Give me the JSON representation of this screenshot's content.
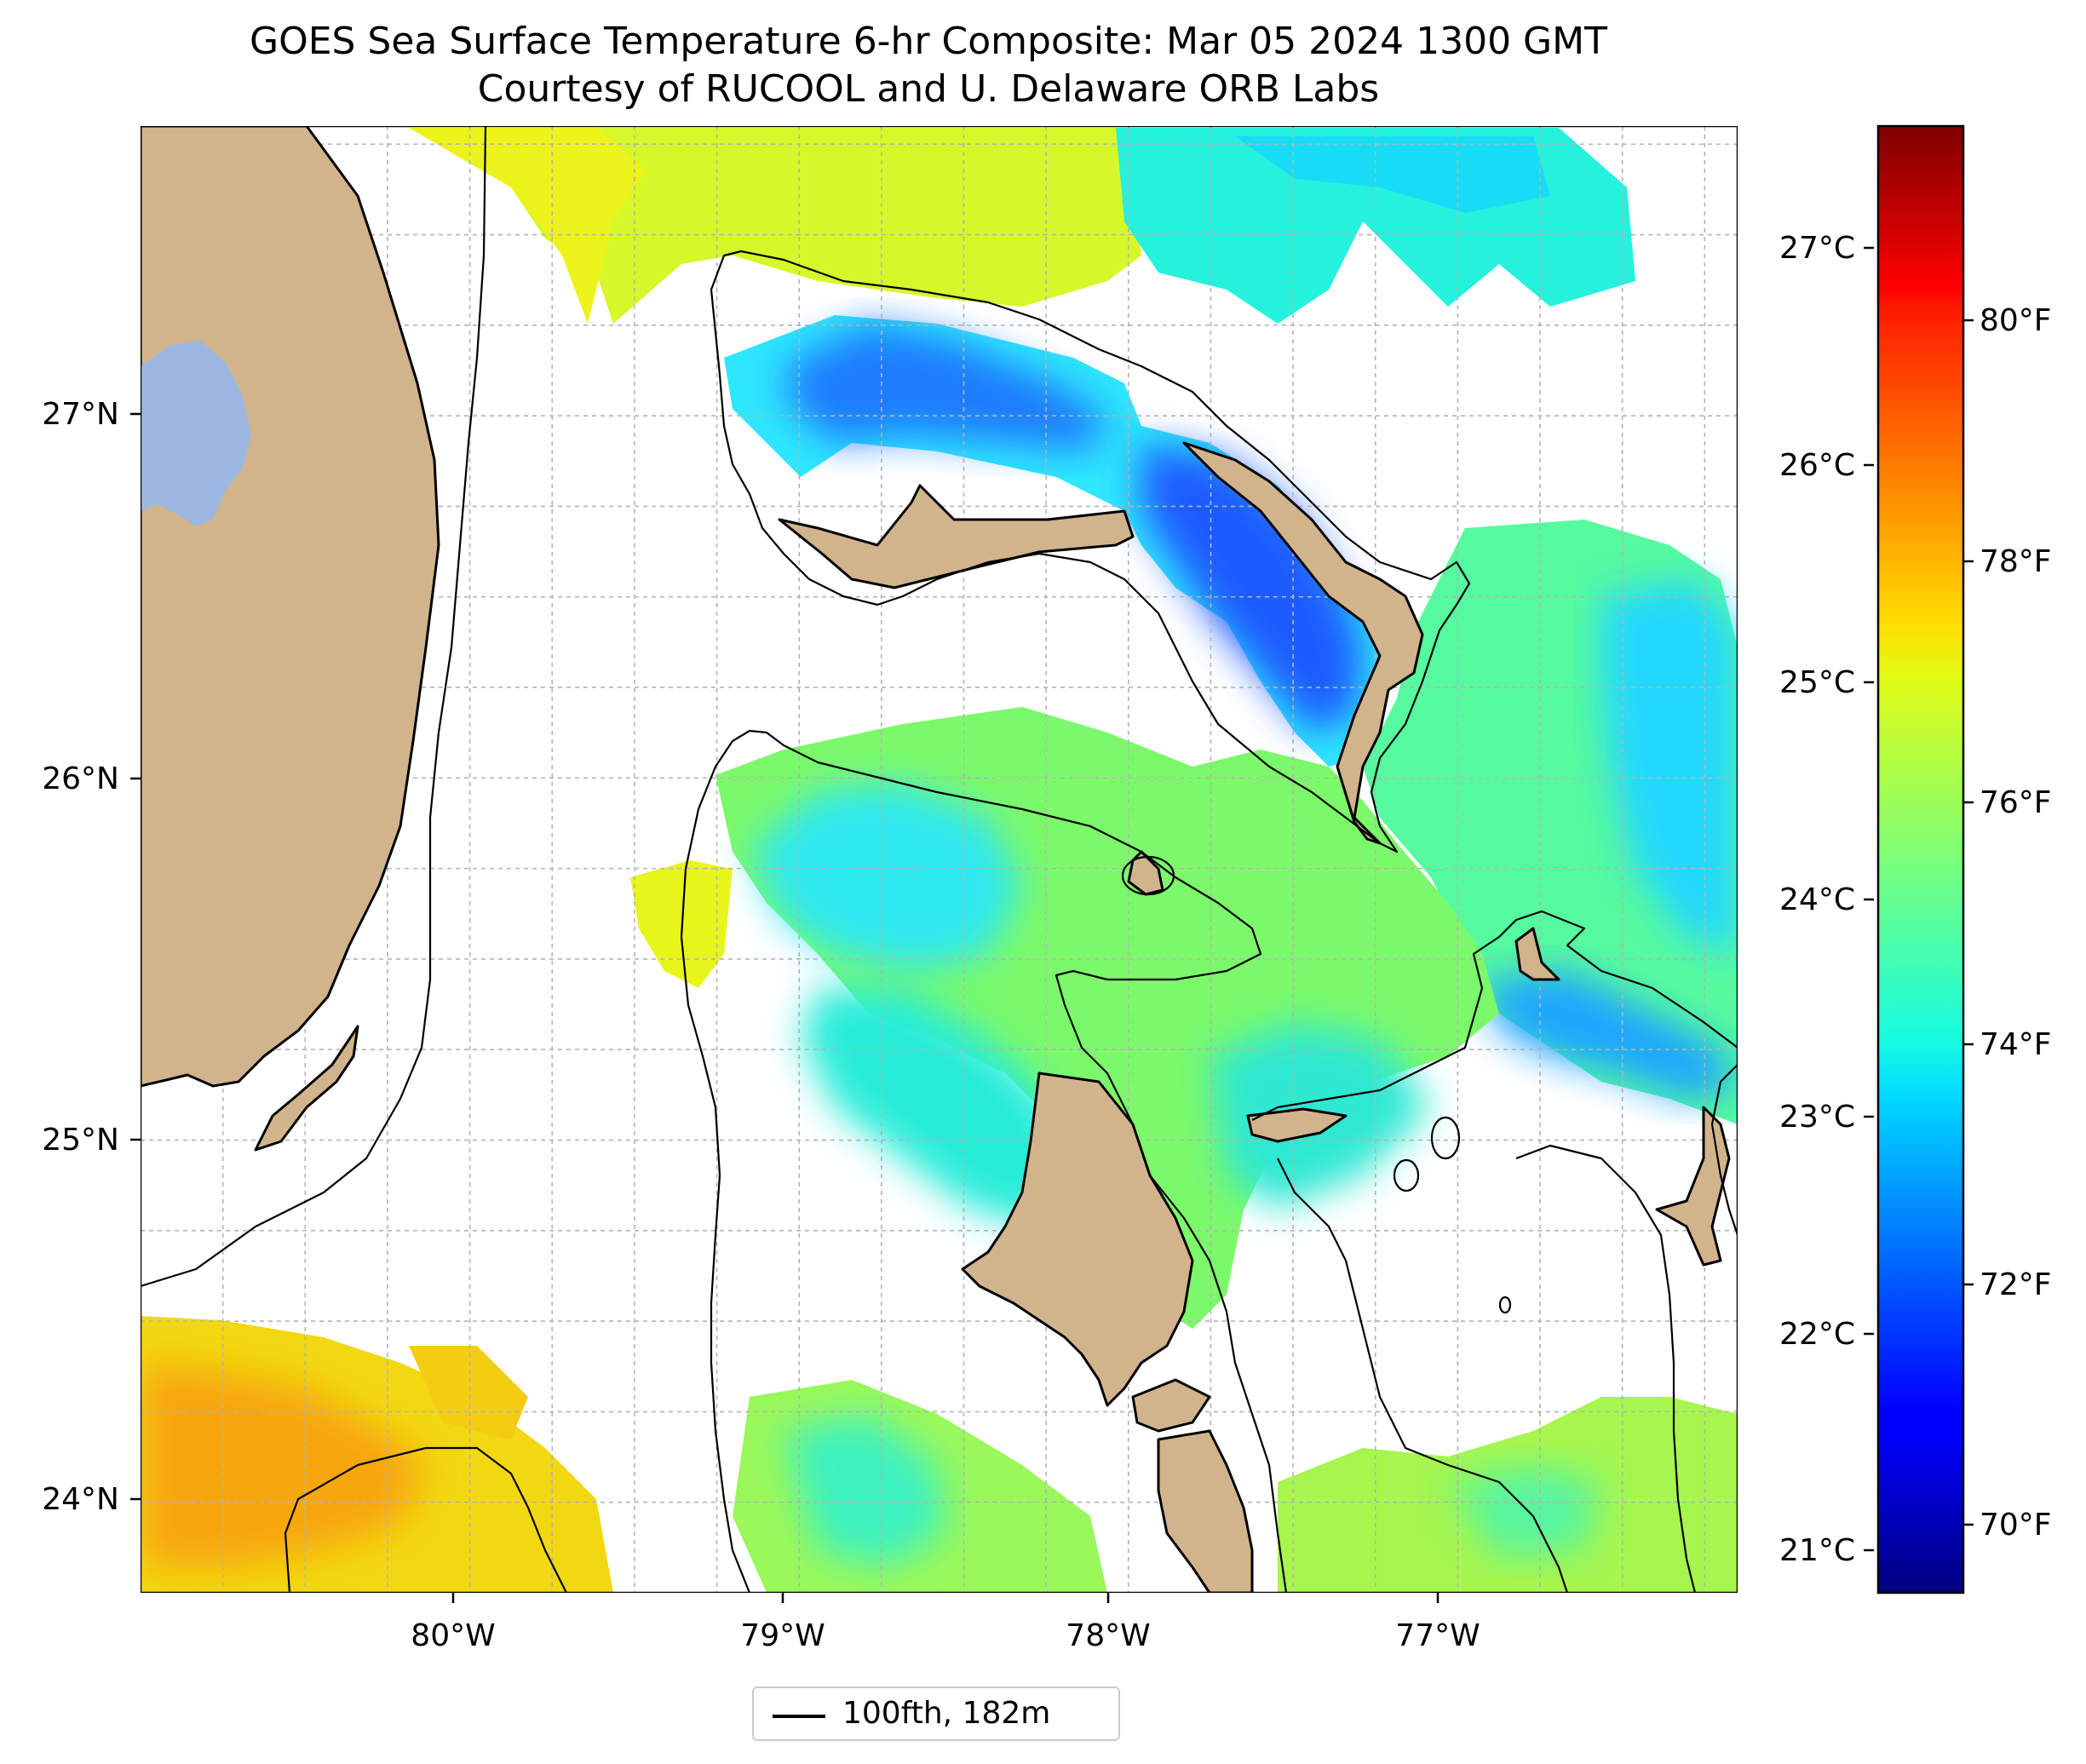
{
  "title": {
    "line1": "GOES Sea Surface Temperature 6-hr Composite: Mar 05 2024 1300 GMT",
    "line2": "Courtesy of RUCOOL and U. Delaware ORB Labs"
  },
  "map": {
    "extent": {
      "lon_min": -81.0,
      "lon_max": -76.15,
      "lat_min": 23.75,
      "lat_max": 27.8
    },
    "lat_labels": [
      "27°N",
      "26°N",
      "25°N",
      "24°N"
    ],
    "lon_labels": [
      "80°W",
      "79°W",
      "78°W",
      "77°W"
    ],
    "gridlines": true,
    "colors": {
      "land": "#d1b48c",
      "lake": "#9cb8e2",
      "no_data": "#ffffff",
      "contour": "#000000"
    },
    "isobath": "100fth, 182m"
  },
  "colorbar": {
    "colormap": "jet",
    "range_f": [
      69.3,
      81.5
    ],
    "celsius_labels": [
      "27°C",
      "26°C",
      "25°C",
      "24°C",
      "23°C",
      "22°C",
      "21°C"
    ],
    "fahrenheit_labels": [
      "80°F",
      "78°F",
      "76°F",
      "74°F",
      "72°F",
      "70°F"
    ]
  },
  "legend": {
    "label": "100fth, 182m"
  }
}
